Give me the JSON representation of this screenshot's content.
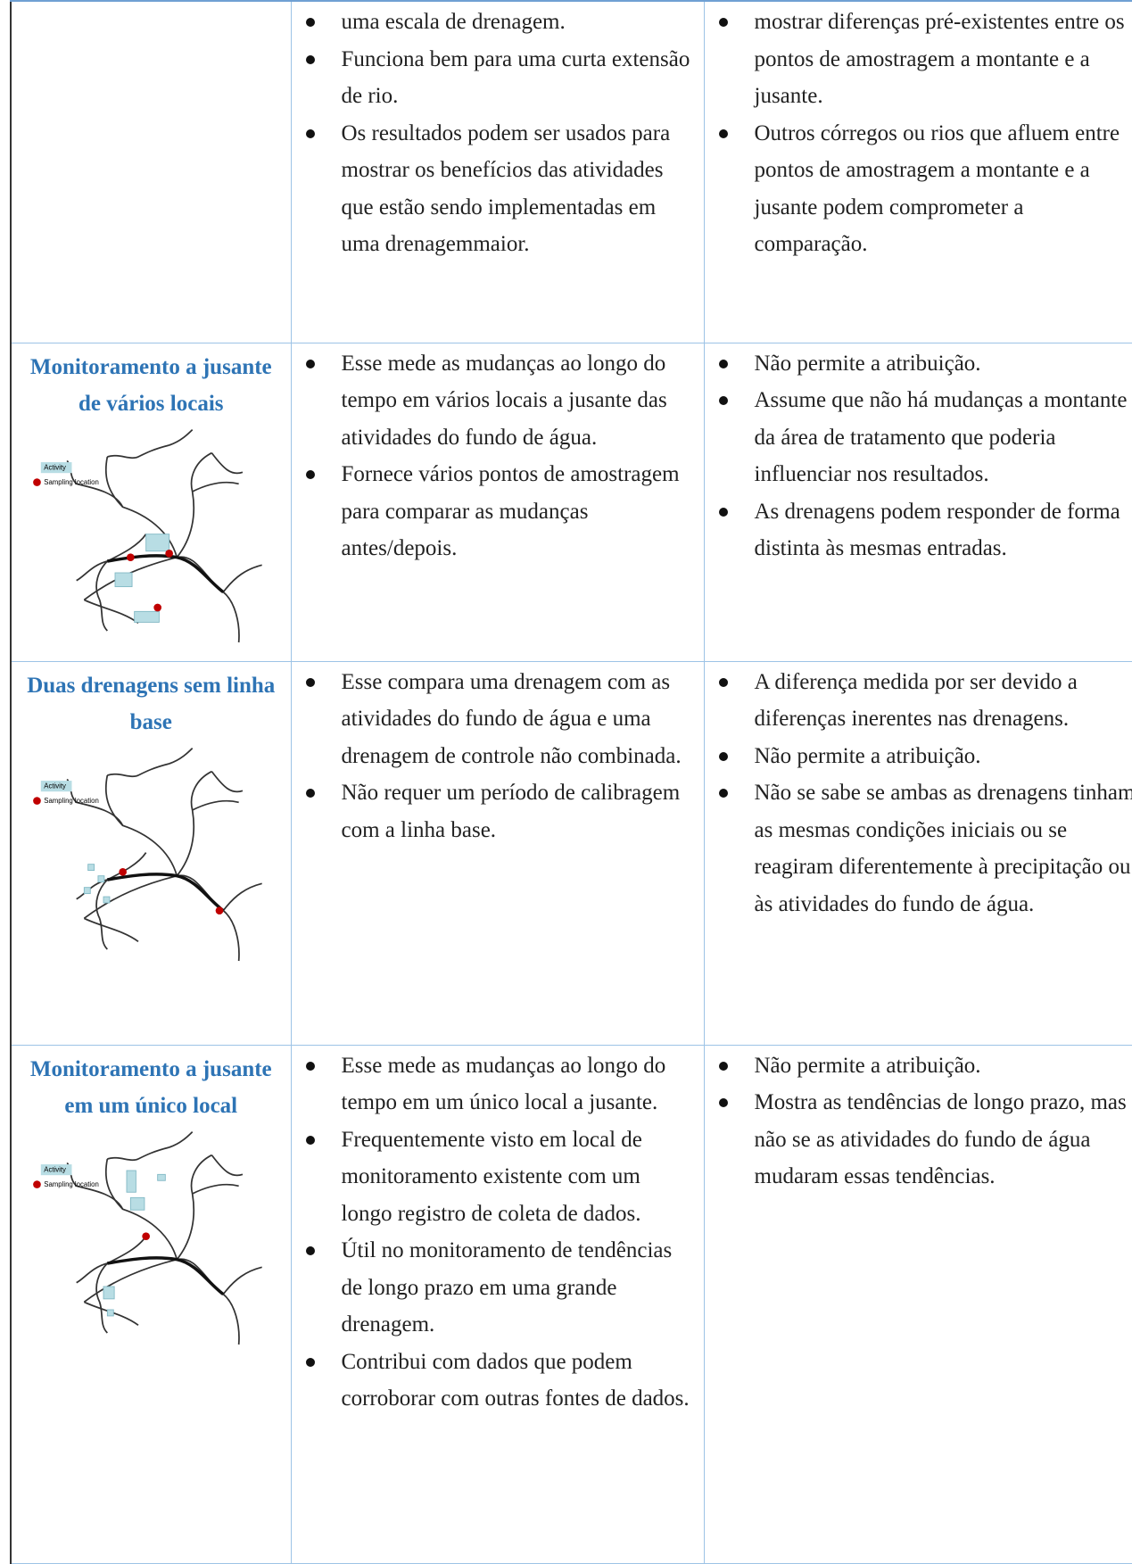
{
  "table": {
    "rows": [
      {
        "advantages": [
          "uma escala de drenagem.",
          "Funciona bem para uma curta extensão de rio.",
          "Os resultados podem ser usados para mostrar os benefícios das atividades que estão sendo implementadas em uma drenagemmaior."
        ],
        "disadvantages": [
          "mostrar diferenças pré-existentes entre os pontos de amostragem a montante e a jusante.",
          "Outros córregos ou rios que afluem entre pontos de amostragem a montante e a jusante podem comprometer a comparação."
        ]
      },
      {
        "method": "Monitoramento a jusante de vários locais",
        "legend": {
          "activity": "Activity",
          "sampling": "Sampling location"
        },
        "advantages": [
          "Esse mede as mudanças ao longo do tempo em vários locais a jusante das atividades do fundo de água.",
          "Fornece vários pontos de amostragem para comparar as mudanças antes/depois."
        ],
        "disadvantages": [
          "Não permite a atribuição.",
          "Assume que não há mudanças a montante da área de tratamento que poderia influenciar nos resultados.",
          "As drenagens podem responder de forma distinta às mesmas entradas."
        ]
      },
      {
        "method": "Duas drenagens sem linha base",
        "legend": {
          "activity": "Activity",
          "sampling": "Sampling location"
        },
        "advantages": [
          "Esse compara uma drenagem com as atividades do fundo de água e uma drenagem de controle não combinada.",
          "Não requer um período de calibragem com a linha base."
        ],
        "disadvantages": [
          "A diferença medida por ser devido a diferenças inerentes nas drenagens.",
          "Não permite a atribuição.",
          "Não se sabe se ambas as drenagens tinham  as mesmas condições iniciais ou se reagiram diferentemente à precipitação ou às atividades do fundo de água."
        ]
      },
      {
        "method": "Monitoramento a jusante em um único local",
        "legend": {
          "activity": "Activity",
          "sampling": "Sampling location"
        },
        "advantages": [
          "Esse mede as mudanças ao longo do tempo em um único local a jusante.",
          "Frequentemente visto em local de monitoramento existente com um longo registro de coleta de dados.",
          "Útil no monitoramento de tendências de longo prazo em uma grande drenagem.",
          "Contribui com dados que podem corroborar com outras fontes de dados."
        ],
        "disadvantages": [
          "Não permite a atribuição.",
          "Mostra as tendências de longo prazo, mas não se as atividades do fundo de água mudaram essas tendências."
        ]
      }
    ]
  }
}
